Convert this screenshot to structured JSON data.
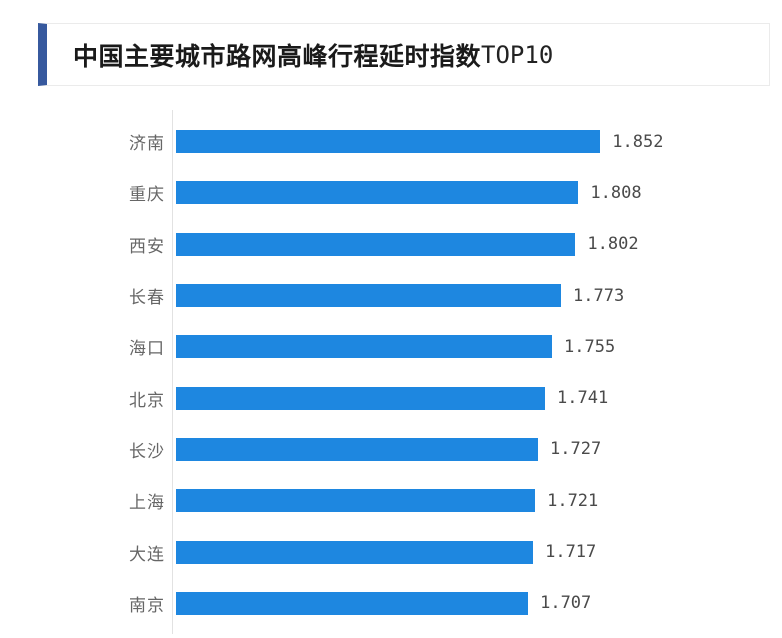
{
  "header": {
    "title_main": "中国主要城市路网高峰行程延时指数",
    "title_suffix": "TOP10",
    "accent_color": "#37599e"
  },
  "chart_data": {
    "type": "bar",
    "orientation": "horizontal",
    "title": "中国主要城市路网高峰行程延时指数TOP10",
    "categories": [
      "济南",
      "重庆",
      "西安",
      "长春",
      "海口",
      "北京",
      "长沙",
      "上海",
      "大连",
      "南京"
    ],
    "values": [
      1.852,
      1.808,
      1.802,
      1.773,
      1.755,
      1.741,
      1.727,
      1.721,
      1.717,
      1.707
    ],
    "value_format_decimals": 3,
    "xlim": [
      1.0,
      2.0
    ],
    "bar_color": "#1e87e0",
    "axis_line_color": "#e2e2e2",
    "label_color": "#666666",
    "value_color": "#4a4a4a",
    "grid": false,
    "legend": false,
    "xlabel": "",
    "ylabel": ""
  }
}
